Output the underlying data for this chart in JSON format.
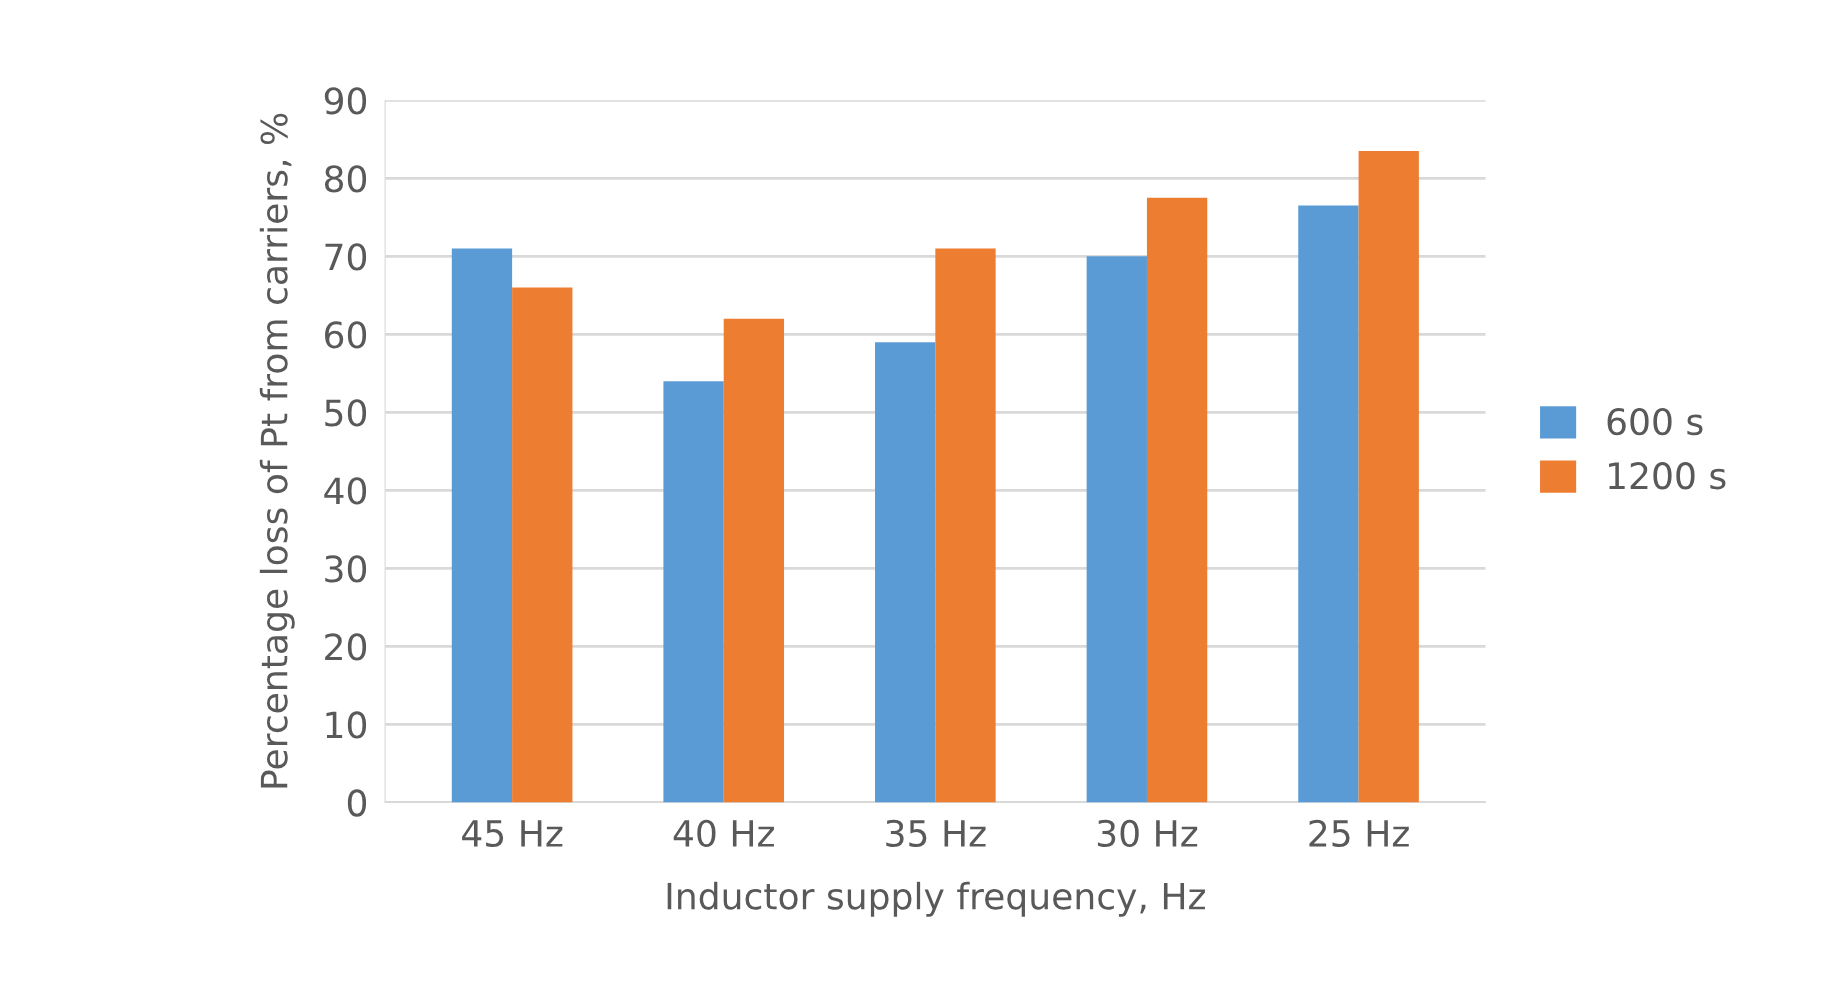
{
  "chart_data": {
    "type": "bar",
    "categories": [
      "45 Hz",
      "40 Hz",
      "35 Hz",
      "30 Hz",
      "25 Hz"
    ],
    "series": [
      {
        "name": "600 s",
        "color": "#5b9bd5",
        "values": [
          71,
          54,
          59,
          70,
          76.5
        ]
      },
      {
        "name": "1200 s",
        "color": "#ed7d31",
        "values": [
          66,
          62,
          71,
          77.5,
          83.5
        ]
      }
    ],
    "xlabel": "Inductor supply frequency, Hz",
    "ylabel": "Percentage loss of Pt from carriers, %",
    "ylim": [
      0,
      90
    ],
    "yticks": [
      0,
      10,
      20,
      30,
      40,
      50,
      60,
      70,
      80,
      90
    ],
    "grid": "y",
    "legend": "right"
  }
}
